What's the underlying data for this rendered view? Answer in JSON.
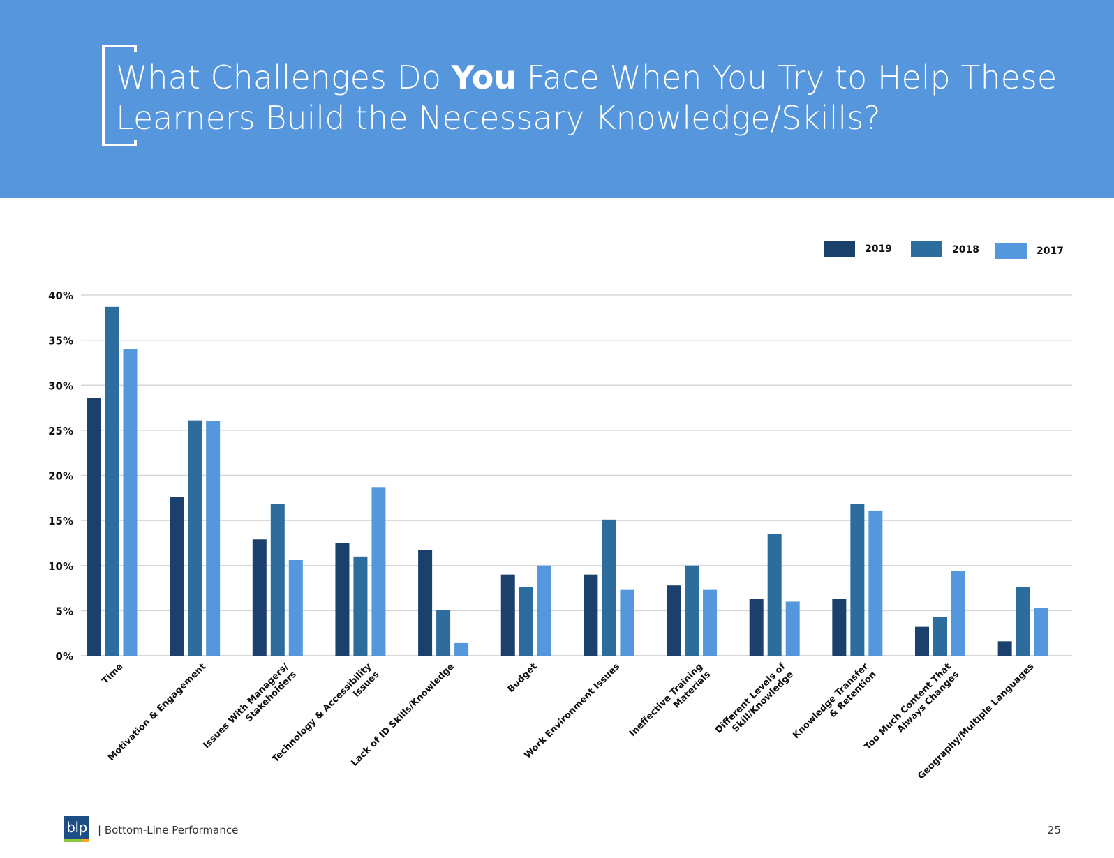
{
  "slide": {
    "title_before": "What Challenges Do ",
    "title_emphasis": "You",
    "title_after": " Face When You Try to Help These Learners Build the Necessary Knowledge/Skills?",
    "banner_color": "#5596dc"
  },
  "footer": {
    "logo_text": "blp",
    "company": "|  Bottom-Line Performance",
    "page_number": "25"
  },
  "chart_data": {
    "type": "bar",
    "title": "",
    "xlabel": "",
    "ylabel": "",
    "ylim": [
      0,
      40
    ],
    "yticks": [
      "0%",
      "5%",
      "10%",
      "15%",
      "20%",
      "25%",
      "30%",
      "35%",
      "40%"
    ],
    "grid": true,
    "legend_position": "top-right",
    "categories": [
      [
        "Time"
      ],
      [
        "Motivation & Engagement"
      ],
      [
        "Issues With Managers/",
        "Stakeholders"
      ],
      [
        "Technology & Accessibility",
        "Issues"
      ],
      [
        "Lack of ID Skills/Knowledge"
      ],
      [
        "Budget"
      ],
      [
        "Work Environment Issues"
      ],
      [
        "Ineffective Training",
        "Materials"
      ],
      [
        "Different Levels of",
        "Skill/Knowledge"
      ],
      [
        "Knowledge Transfer",
        "& Retention"
      ],
      [
        "Too Much Content That",
        "Always Changes"
      ],
      [
        "Geography/Multiple Languages"
      ]
    ],
    "series": [
      {
        "name": "2019",
        "color": "#1b406b",
        "values": [
          28.6,
          17.6,
          12.9,
          12.5,
          11.7,
          9.0,
          9.0,
          7.8,
          6.3,
          6.3,
          3.2,
          1.6
        ]
      },
      {
        "name": "2018",
        "color": "#2c6d9e",
        "values": [
          38.7,
          26.1,
          16.8,
          11.0,
          5.1,
          7.6,
          15.1,
          10.0,
          13.5,
          16.8,
          4.3,
          7.6
        ]
      },
      {
        "name": "2017",
        "color": "#5597dd",
        "values": [
          34.0,
          26.0,
          10.6,
          18.7,
          1.4,
          10.0,
          7.3,
          7.3,
          6.0,
          16.1,
          9.4,
          5.3
        ]
      }
    ]
  }
}
